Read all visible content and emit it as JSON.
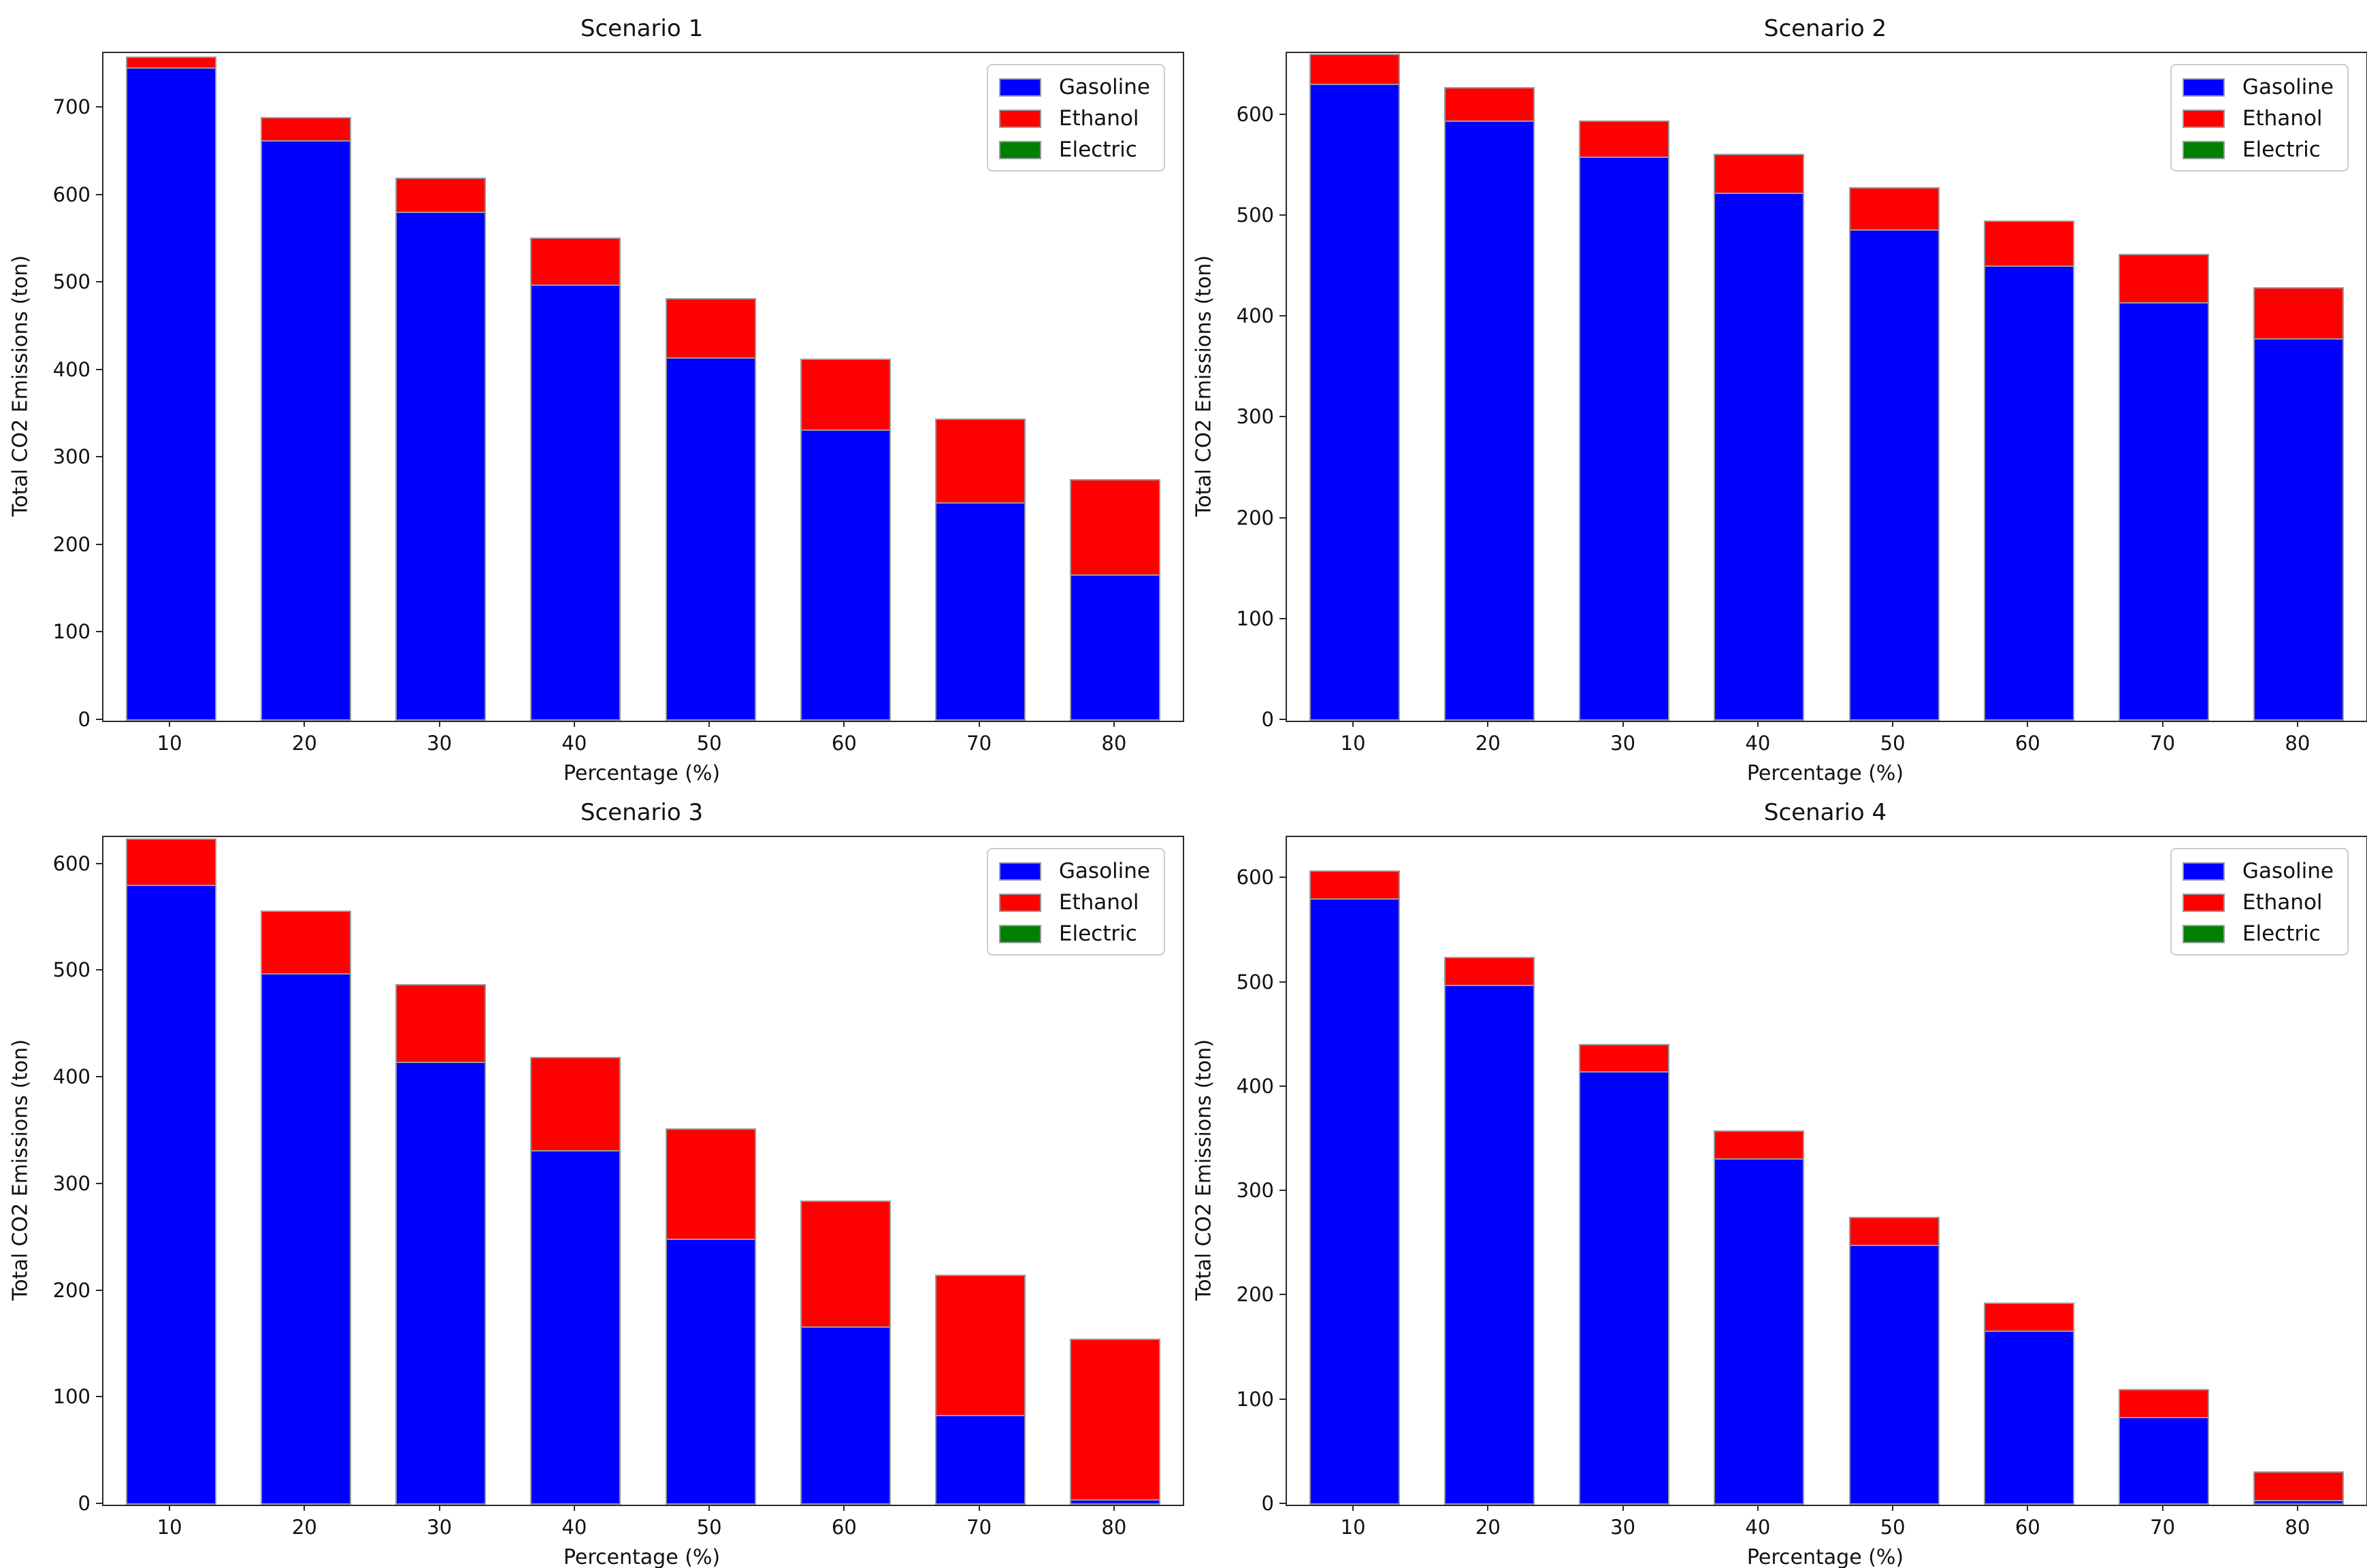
{
  "figure": {
    "background": "#ffffff",
    "text_color": "#111111",
    "spine_color": "#2a2a2a",
    "bar_edge_color": "#9a9a9a"
  },
  "chart_data": [
    {
      "type": "bar",
      "stacked": true,
      "title": "Scenario 1",
      "xlabel": "Percentage (%)",
      "ylabel": "Total CO2 Emissions (ton)",
      "categories": [
        "10",
        "20",
        "30",
        "40",
        "50",
        "60",
        "70",
        "80"
      ],
      "series": [
        {
          "name": "Gasoline",
          "color": "#0000ff",
          "values": [
            745,
            662,
            580,
            497,
            414,
            331,
            248,
            166
          ]
        },
        {
          "name": "Ethanol",
          "color": "#ff0000",
          "values": [
            14,
            28,
            41,
            55,
            69,
            83,
            97,
            110
          ]
        },
        {
          "name": "Electric",
          "color": "#008000",
          "values": [
            0,
            0,
            0,
            0,
            0,
            0,
            0,
            0
          ]
        }
      ],
      "totals": [
        759,
        690,
        621,
        552,
        483,
        414,
        345,
        276
      ],
      "ylim": [
        0,
        763
      ],
      "yticks": [
        "0",
        "100",
        "200",
        "300",
        "400",
        "500",
        "600",
        "700"
      ],
      "grid": false,
      "legend_position": "upper right"
    },
    {
      "type": "bar",
      "stacked": true,
      "title": "Scenario 2",
      "xlabel": "Percentage (%)",
      "ylabel": "Total CO2 Emissions (ton)",
      "categories": [
        "10",
        "20",
        "30",
        "40",
        "50",
        "60",
        "70",
        "80"
      ],
      "series": [
        {
          "name": "Gasoline",
          "color": "#0000ff",
          "values": [
            630,
            594,
            558,
            522,
            486,
            450,
            414,
            378
          ]
        },
        {
          "name": "Ethanol",
          "color": "#ff0000",
          "values": [
            31,
            34,
            37,
            40,
            43,
            46,
            49,
            52
          ]
        },
        {
          "name": "Electric",
          "color": "#008000",
          "values": [
            0,
            0,
            0,
            0,
            0,
            0,
            0,
            0
          ]
        }
      ],
      "totals": [
        661,
        628,
        595,
        562,
        529,
        496,
        463,
        430
      ],
      "ylim": [
        0,
        662
      ],
      "yticks": [
        "0",
        "100",
        "200",
        "300",
        "400",
        "500",
        "600"
      ],
      "grid": false,
      "legend_position": "upper right"
    },
    {
      "type": "bar",
      "stacked": true,
      "title": "Scenario 3",
      "xlabel": "Percentage (%)",
      "ylabel": "Total CO2 Emissions (ton)",
      "categories": [
        "10",
        "20",
        "30",
        "40",
        "50",
        "60",
        "70",
        "80"
      ],
      "series": [
        {
          "name": "Gasoline",
          "color": "#0000ff",
          "values": [
            580,
            497,
            414,
            331,
            248,
            166,
            83,
            4
          ]
        },
        {
          "name": "Ethanol",
          "color": "#ff0000",
          "values": [
            45,
            60,
            74,
            89,
            105,
            119,
            133,
            152
          ]
        },
        {
          "name": "Electric",
          "color": "#008000",
          "values": [
            0,
            0,
            0,
            0,
            0,
            0,
            0,
            0
          ]
        }
      ],
      "totals": [
        625,
        557,
        488,
        420,
        353,
        285,
        216,
        156
      ],
      "ylim": [
        0,
        626
      ],
      "yticks": [
        "0",
        "100",
        "200",
        "300",
        "400",
        "500",
        "600"
      ],
      "grid": false,
      "legend_position": "upper right"
    },
    {
      "type": "bar",
      "stacked": true,
      "title": "Scenario 4",
      "xlabel": "Percentage (%)",
      "ylabel": "Total CO2 Emissions (ton)",
      "categories": [
        "10",
        "20",
        "30",
        "40",
        "50",
        "60",
        "70",
        "80"
      ],
      "series": [
        {
          "name": "Gasoline",
          "color": "#0000ff",
          "values": [
            580,
            497,
            414,
            331,
            248,
            166,
            83,
            3
          ]
        },
        {
          "name": "Ethanol",
          "color": "#ff0000",
          "values": [
            28,
            28,
            28,
            28,
            28,
            28,
            28,
            29
          ]
        },
        {
          "name": "Electric",
          "color": "#008000",
          "values": [
            0,
            0,
            0,
            0,
            0,
            0,
            0,
            0
          ]
        }
      ],
      "totals": [
        608,
        525,
        442,
        359,
        276,
        194,
        111,
        32
      ],
      "ylim": [
        0,
        640
      ],
      "yticks": [
        "0",
        "100",
        "200",
        "300",
        "400",
        "500",
        "600"
      ],
      "grid": false,
      "legend_position": "upper right"
    }
  ]
}
